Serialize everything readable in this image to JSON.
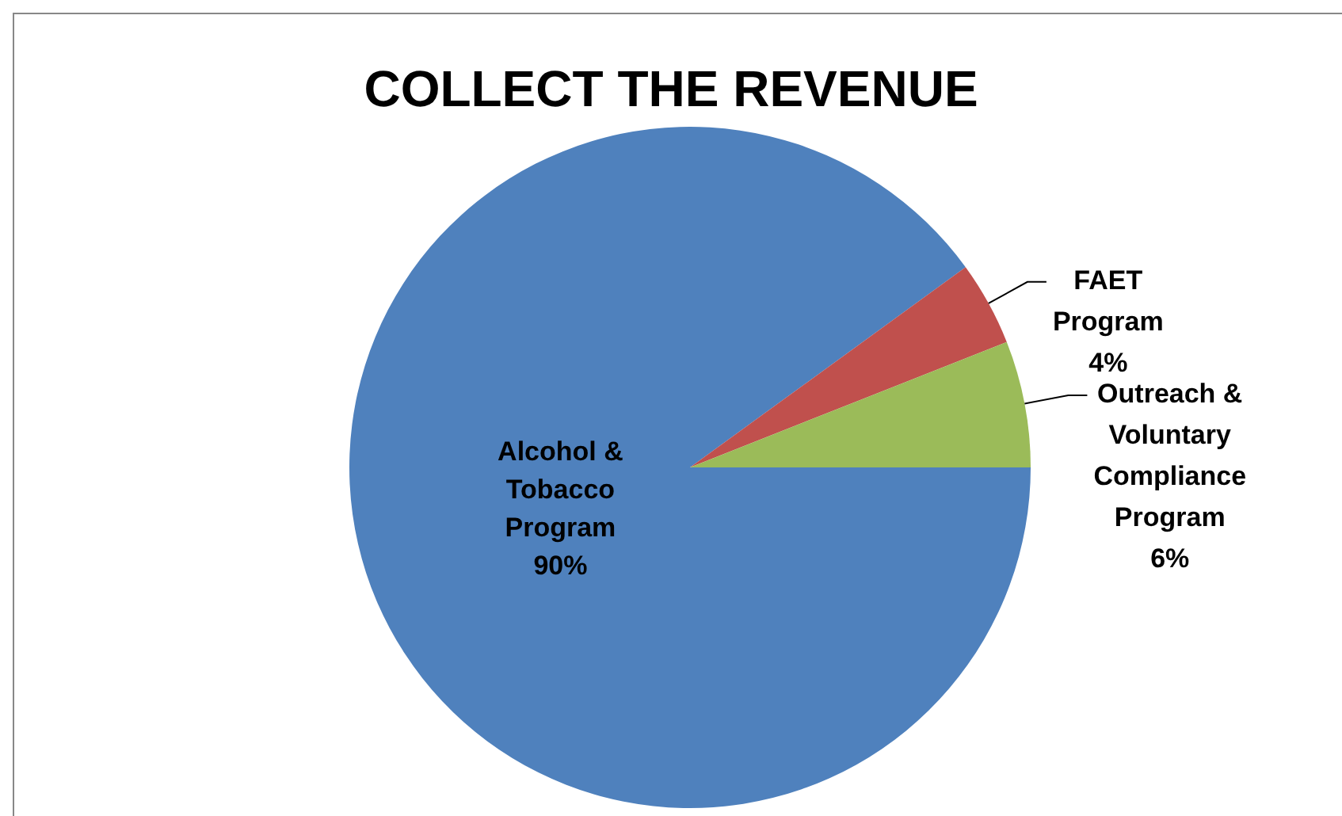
{
  "chart_data": {
    "type": "pie",
    "title": "COLLECT THE REVENUE",
    "categories": [
      "Alcohol & Tobacco Program",
      "FAET Program",
      "Outreach & Voluntary Compliance Program"
    ],
    "values": [
      90,
      4,
      6
    ],
    "value_labels": [
      "90%",
      "4%",
      "6%"
    ],
    "colors": [
      "#4f81bd",
      "#c0504d",
      "#9bbb59"
    ],
    "legend": false
  }
}
